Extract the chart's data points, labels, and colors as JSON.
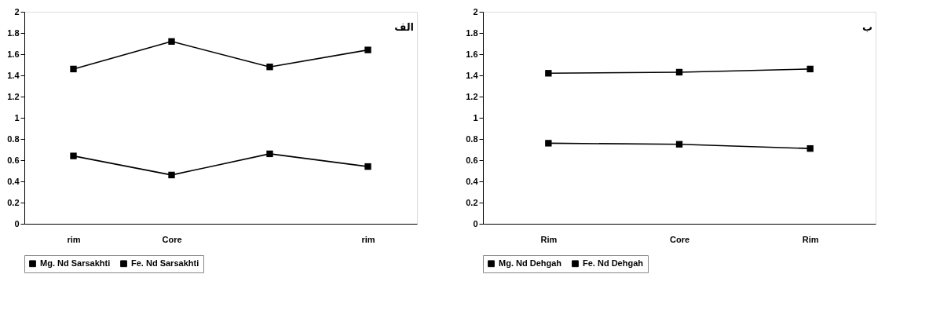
{
  "chart_data": [
    {
      "type": "line",
      "categories": [
        "rim",
        "Core",
        null,
        "rim"
      ],
      "annotations": [
        "الف"
      ],
      "ylim": [
        0,
        2
      ],
      "yticks": [
        0,
        0.2,
        0.4,
        0.6,
        0.8,
        1,
        1.2,
        1.4,
        1.6,
        1.8,
        2
      ],
      "grid": false,
      "legend": "bottom",
      "marker": "square",
      "line_style": "solid",
      "series": [
        {
          "name": "Mg. Nd Sarsakhti",
          "color": "#000000",
          "values": [
            0.64,
            0.46,
            0.66,
            0.54
          ]
        },
        {
          "name": "Fe. Nd Sarsakhti",
          "color": "#000000",
          "values": [
            1.46,
            1.72,
            1.48,
            1.64
          ]
        }
      ]
    },
    {
      "type": "line",
      "categories": [
        "Rim",
        "Core",
        "Rim"
      ],
      "annotations": [
        "ب"
      ],
      "ylim": [
        0,
        2
      ],
      "yticks": [
        0,
        0.2,
        0.4,
        0.6,
        0.8,
        1,
        1.2,
        1.4,
        1.6,
        1.8,
        2
      ],
      "grid": false,
      "legend": "bottom",
      "marker": "square",
      "line_style": "solid",
      "series": [
        {
          "name": "Mg. Nd Dehgah",
          "color": "#000000",
          "values": [
            0.76,
            0.75,
            0.71
          ]
        },
        {
          "name": "Fe. Nd Dehgah",
          "color": "#000000",
          "values": [
            1.42,
            1.43,
            1.46
          ]
        }
      ]
    }
  ]
}
